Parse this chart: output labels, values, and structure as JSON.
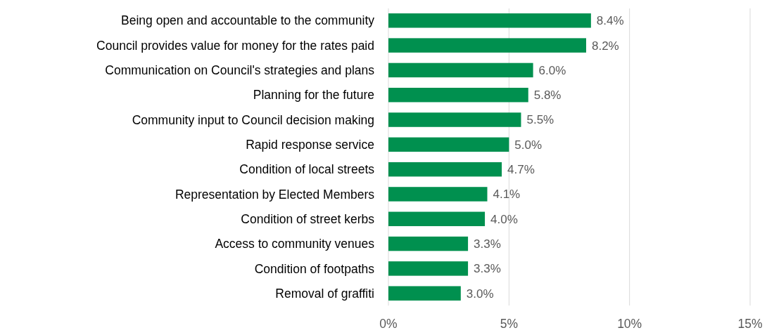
{
  "chart_data": {
    "type": "bar",
    "orientation": "horizontal",
    "categories": [
      "Being open and accountable to the community",
      "Council provides value for money for the rates paid",
      "Communication on Council's strategies and plans",
      "Planning for the future",
      "Community input to Council decision making",
      "Rapid response service",
      "Condition of local streets",
      "Representation by Elected Members",
      "Condition of street kerbs",
      "Access to community venues",
      "Condition of footpaths",
      "Removal of graffiti"
    ],
    "values": [
      8.4,
      8.2,
      6.0,
      5.8,
      5.5,
      5.0,
      4.7,
      4.1,
      4.0,
      3.3,
      3.3,
      3.0
    ],
    "value_labels": [
      "8.4%",
      "8.2%",
      "6.0%",
      "5.8%",
      "5.5%",
      "5.0%",
      "4.7%",
      "4.1%",
      "4.0%",
      "3.3%",
      "3.3%",
      "3.0%"
    ],
    "color": "#00904f",
    "xlim": [
      0,
      15
    ],
    "xticks": [
      {
        "value": 0,
        "label": "0%"
      },
      {
        "value": 5,
        "label": "5%"
      },
      {
        "value": 10,
        "label": "10%"
      },
      {
        "value": 15,
        "label": "15%"
      }
    ],
    "grid": "x"
  }
}
